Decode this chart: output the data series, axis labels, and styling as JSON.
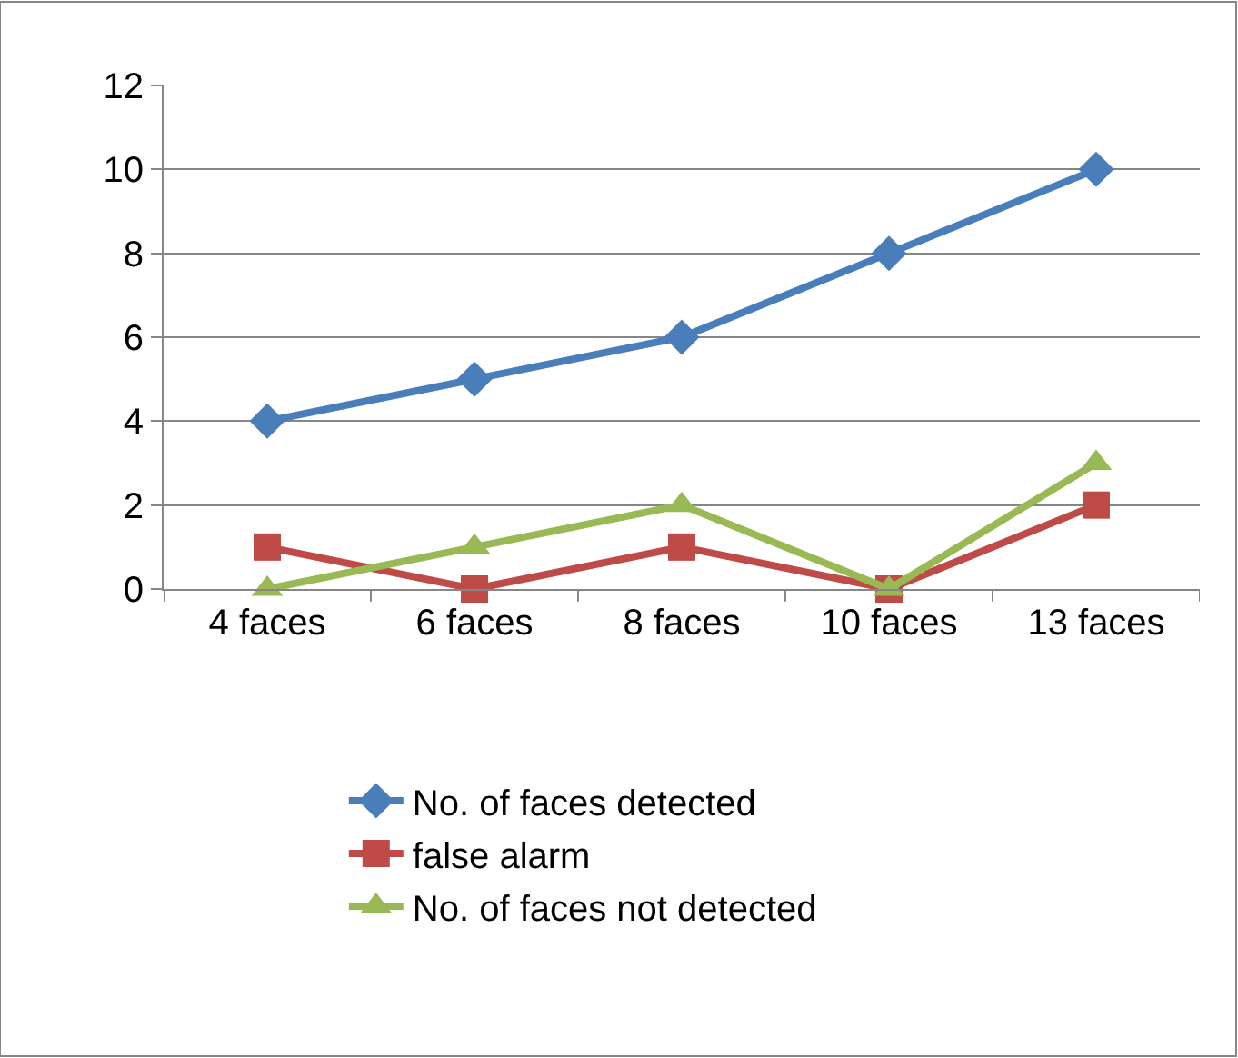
{
  "chart_data": {
    "type": "line",
    "categories": [
      "4 faces",
      "6 faces",
      "8 faces",
      "10 faces",
      "13 faces"
    ],
    "series": [
      {
        "name": "No. of faces detected",
        "color": "#4a7ebb",
        "marker": "diamond",
        "values": [
          4,
          5,
          6,
          8,
          10
        ]
      },
      {
        "name": "false alarm",
        "color": "#be4b48",
        "marker": "square",
        "values": [
          1,
          0,
          1,
          0,
          2
        ]
      },
      {
        "name": "No. of faces not detected",
        "color": "#98b954",
        "marker": "triangle",
        "values": [
          0,
          1,
          2,
          0,
          3
        ]
      }
    ],
    "ylim": [
      0,
      12
    ],
    "yticks": [
      0,
      2,
      4,
      6,
      8,
      10,
      12
    ],
    "grid": "y",
    "legend": "bottom",
    "line_style": "solid"
  }
}
